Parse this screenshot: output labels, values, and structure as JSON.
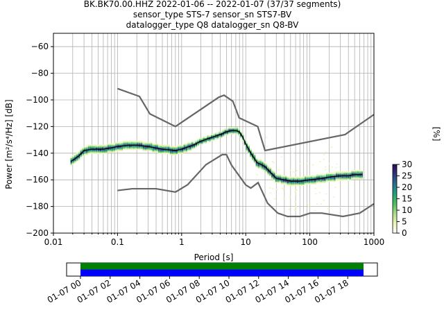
{
  "title": {
    "line1": "BK.BK70.00.HHZ   2022-01-06 -- 2022-01-07  (37/37 segments)",
    "line2": "sensor_type STS-7 sensor_sn STS7-BV",
    "line3": "datalogger_type Q8 datalogger_sn Q8-BV"
  },
  "chart_data": [
    {
      "type": "heatmap",
      "title": "BK.BK70.00.HHZ   2022-01-06 -- 2022-01-07  (37/37 segments)",
      "xlabel": "Period [s]",
      "ylabel": "Power [m²/s⁴/Hz] [dB]",
      "xscale": "log",
      "xlim": [
        0.01,
        1000
      ],
      "ylim": [
        -200,
        -50
      ],
      "grid": true,
      "x_tick_labels": [
        "0.01",
        "0.1",
        "1",
        "10",
        "100",
        "1000"
      ],
      "y_ticks": [
        -60,
        -80,
        -100,
        -120,
        -140,
        -160,
        -180,
        -200
      ],
      "colorbar": {
        "label": "[%]",
        "ticks": [
          0,
          5,
          10,
          15,
          20,
          25,
          30
        ],
        "range": [
          0,
          30
        ],
        "colors": [
          "#ffffff",
          "#e9f5b8",
          "#a9dc8a",
          "#4fbf5f",
          "#22a07a",
          "#2a6f8f",
          "#31367a",
          "#2a0e4e"
        ]
      },
      "noise_models": {
        "high": {
          "periods": [
            0.1,
            0.22,
            0.32,
            0.8,
            3.8,
            4.6,
            6.3,
            7.9,
            15.4,
            20,
            354.8,
            1000
          ],
          "db": [
            -91.5,
            -97.4,
            -110.5,
            -120,
            -98,
            -96.5,
            -101,
            -113.5,
            -120,
            -138,
            -126,
            -111
          ]
        },
        "low": {
          "periods": [
            0.1,
            0.17,
            0.4,
            0.8,
            1.24,
            2.4,
            4.3,
            5,
            6,
            10,
            12,
            15.6,
            21.9,
            31.6,
            45,
            70,
            101,
            154,
            328,
            600,
            1000
          ],
          "db": [
            -168,
            -166.7,
            -166.7,
            -169.2,
            -163.7,
            -148.6,
            -141.1,
            -141.1,
            -149,
            -163.8,
            -166.2,
            -162.1,
            -177.5,
            -185,
            -187.5,
            -187.5,
            -185,
            -185,
            -187.5,
            -185,
            -178
          ]
        }
      },
      "mode_curve": {
        "periods": [
          0.019,
          0.022,
          0.025,
          0.03,
          0.04,
          0.06,
          0.08,
          0.1,
          0.15,
          0.2,
          0.3,
          0.5,
          0.8,
          1,
          1.5,
          2,
          3,
          4,
          5,
          6,
          7,
          8,
          9,
          10,
          12,
          15,
          20,
          25,
          30,
          40,
          50,
          70,
          100,
          150,
          200,
          300,
          400,
          500,
          650
        ],
        "db": [
          -146,
          -144,
          -142,
          -138,
          -137,
          -137,
          -136,
          -135,
          -134,
          -134,
          -135,
          -137,
          -138,
          -137,
          -134,
          -131,
          -128,
          -126,
          -124,
          -123,
          -123,
          -124,
          -128,
          -133,
          -140,
          -147,
          -150,
          -155,
          -159,
          -160,
          -161,
          -161,
          -160,
          -159,
          -158,
          -157,
          -157,
          -156,
          -156
        ]
      }
    },
    {
      "type": "bar",
      "description_labels": [
        "01-07 00",
        "01-07 02",
        "01-07 04",
        "01-07 06",
        "01-07 08",
        "01-07 10",
        "01-07 12",
        "01-07 14",
        "01-07 16",
        "01-07 18"
      ],
      "series": [
        {
          "color": "#008000",
          "coverage": [
            0.0,
            1.0
          ]
        },
        {
          "color": "#0000ff",
          "coverage": [
            0.0,
            1.0
          ]
        }
      ]
    }
  ],
  "timeline": {
    "tick_labels": [
      "01-07 00",
      "01-07 02",
      "01-07 04",
      "01-07 06",
      "01-07 08",
      "01-07 10",
      "01-07 12",
      "01-07 14",
      "01-07 16",
      "01-07 18"
    ]
  }
}
